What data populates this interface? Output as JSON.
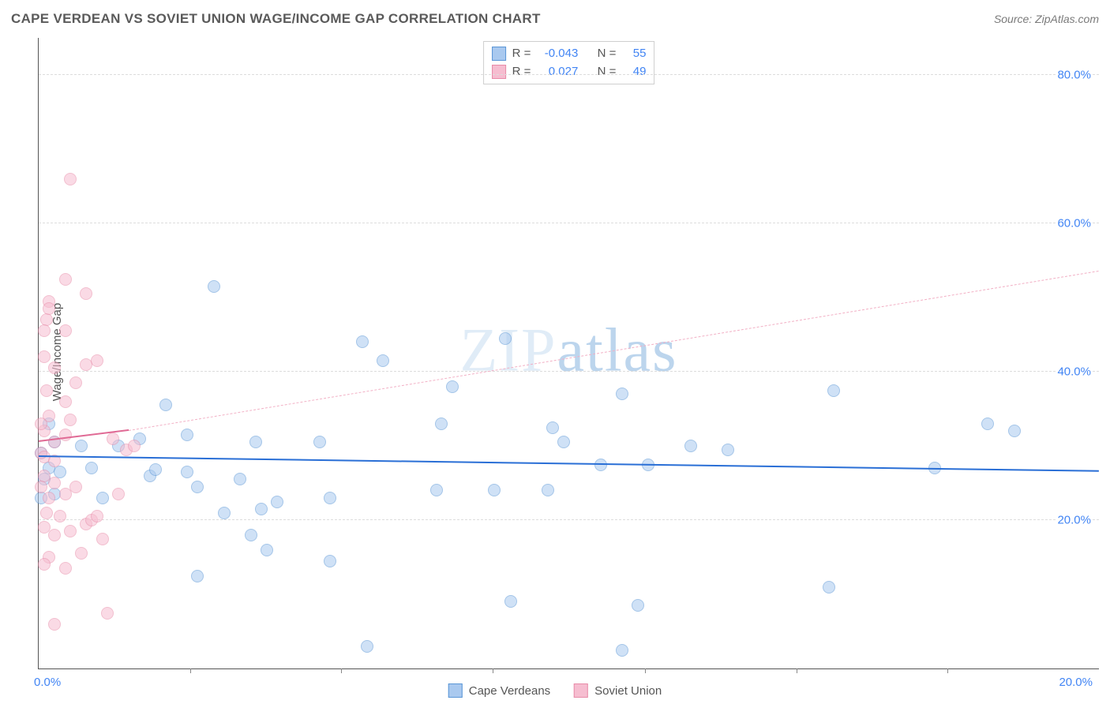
{
  "header": {
    "title": "CAPE VERDEAN VS SOVIET UNION WAGE/INCOME GAP CORRELATION CHART",
    "source_label": "Source: ZipAtlas.com"
  },
  "watermark": {
    "part1": "ZIP",
    "part2": "atlas"
  },
  "chart": {
    "type": "scatter",
    "ylabel": "Wage/Income Gap",
    "background_color": "#ffffff",
    "grid_color": "#dcdcdc",
    "axis_color": "#555555",
    "tick_label_color": "#4285f4",
    "xlim": [
      0,
      20
    ],
    "ylim": [
      0,
      85
    ],
    "xticks_labeled": [
      {
        "v": 0,
        "label": "0.0%"
      },
      {
        "v": 20,
        "label": "20.0%"
      }
    ],
    "xticks_minor": [
      2.86,
      5.71,
      8.57,
      11.43,
      14.29,
      17.14
    ],
    "yticks": [
      {
        "v": 20,
        "label": "20.0%"
      },
      {
        "v": 40,
        "label": "40.0%"
      },
      {
        "v": 60,
        "label": "60.0%"
      },
      {
        "v": 80,
        "label": "80.0%"
      }
    ],
    "series": [
      {
        "id": "cape_verdeans",
        "label": "Cape Verdeans",
        "fill_color": "#a9c9ef",
        "stroke_color": "#5a96d6",
        "fill_opacity": 0.55,
        "marker_radius": 8,
        "trend": {
          "x1": 0,
          "y1": 28.5,
          "x2": 20,
          "y2": 26.5,
          "color": "#2a6fd6",
          "width": 2.5,
          "dash": "solid"
        },
        "points": [
          [
            3.3,
            51.5
          ],
          [
            6.1,
            44.0
          ],
          [
            6.5,
            41.5
          ],
          [
            8.8,
            44.5
          ],
          [
            11.0,
            37.0
          ],
          [
            15.0,
            37.5
          ],
          [
            17.9,
            33.0
          ],
          [
            18.4,
            32.0
          ],
          [
            12.3,
            30.0
          ],
          [
            9.9,
            30.5
          ],
          [
            9.7,
            32.5
          ],
          [
            7.6,
            33.0
          ],
          [
            7.8,
            38.0
          ],
          [
            5.3,
            30.5
          ],
          [
            4.1,
            30.5
          ],
          [
            2.8,
            31.5
          ],
          [
            3.0,
            24.5
          ],
          [
            3.8,
            25.5
          ],
          [
            2.4,
            35.5
          ],
          [
            1.9,
            31.0
          ],
          [
            1.5,
            30.0
          ],
          [
            0.8,
            30.0
          ],
          [
            0.3,
            30.5
          ],
          [
            0.2,
            27.0
          ],
          [
            0.4,
            26.5
          ],
          [
            1.0,
            27.0
          ],
          [
            0.3,
            23.5
          ],
          [
            0.1,
            25.5
          ],
          [
            1.2,
            23.0
          ],
          [
            2.1,
            26.0
          ],
          [
            2.2,
            26.8
          ],
          [
            2.8,
            26.5
          ],
          [
            3.5,
            21.0
          ],
          [
            4.2,
            21.5
          ],
          [
            4.5,
            22.5
          ],
          [
            5.5,
            23.0
          ],
          [
            7.5,
            24.0
          ],
          [
            8.6,
            24.0
          ],
          [
            9.6,
            24.0
          ],
          [
            10.6,
            27.5
          ],
          [
            11.5,
            27.5
          ],
          [
            13.0,
            29.5
          ],
          [
            16.9,
            27.0
          ],
          [
            3.0,
            12.5
          ],
          [
            4.0,
            18.0
          ],
          [
            4.3,
            16.0
          ],
          [
            5.5,
            14.5
          ],
          [
            8.9,
            9.0
          ],
          [
            11.3,
            8.5
          ],
          [
            14.9,
            11.0
          ],
          [
            0.05,
            23.0
          ],
          [
            0.05,
            29.0
          ],
          [
            6.2,
            3.0
          ],
          [
            11.0,
            2.5
          ],
          [
            0.2,
            33.0
          ]
        ]
      },
      {
        "id": "soviet_union",
        "label": "Soviet Union",
        "fill_color": "#f6bdd0",
        "stroke_color": "#e88ba8",
        "fill_opacity": 0.55,
        "marker_radius": 8,
        "trend_solid": {
          "x1": 0,
          "y1": 30.5,
          "x2": 1.7,
          "y2": 32.0,
          "color": "#e06a95",
          "width": 2.5
        },
        "trend_dashed": {
          "x1": 1.7,
          "y1": 32.0,
          "x2": 20,
          "y2": 53.5,
          "color": "#f2b0c5",
          "width": 1.5
        },
        "points": [
          [
            0.6,
            66.0
          ],
          [
            0.2,
            49.5
          ],
          [
            0.5,
            52.5
          ],
          [
            0.9,
            50.5
          ],
          [
            0.15,
            47.0
          ],
          [
            0.2,
            48.5
          ],
          [
            0.1,
            45.5
          ],
          [
            0.5,
            45.5
          ],
          [
            0.1,
            42.0
          ],
          [
            0.9,
            41.0
          ],
          [
            0.3,
            40.5
          ],
          [
            0.7,
            38.5
          ],
          [
            1.1,
            41.5
          ],
          [
            0.15,
            37.5
          ],
          [
            0.5,
            36.0
          ],
          [
            0.2,
            34.0
          ],
          [
            0.1,
            32.0
          ],
          [
            0.3,
            30.5
          ],
          [
            0.5,
            31.5
          ],
          [
            0.05,
            29.0
          ],
          [
            0.1,
            28.5
          ],
          [
            0.3,
            28.0
          ],
          [
            0.1,
            26.0
          ],
          [
            0.3,
            25.0
          ],
          [
            0.05,
            24.5
          ],
          [
            0.2,
            23.0
          ],
          [
            0.5,
            23.5
          ],
          [
            0.7,
            24.5
          ],
          [
            0.9,
            19.5
          ],
          [
            0.15,
            21.0
          ],
          [
            0.4,
            20.5
          ],
          [
            0.6,
            18.5
          ],
          [
            1.0,
            20.0
          ],
          [
            0.3,
            18.0
          ],
          [
            0.1,
            19.0
          ],
          [
            0.8,
            15.5
          ],
          [
            1.3,
            7.5
          ],
          [
            1.65,
            29.5
          ],
          [
            1.5,
            23.5
          ],
          [
            1.1,
            20.5
          ],
          [
            1.4,
            31.0
          ],
          [
            1.8,
            30.0
          ],
          [
            0.05,
            33.0
          ],
          [
            0.6,
            33.5
          ],
          [
            0.3,
            6.0
          ],
          [
            0.2,
            15.0
          ],
          [
            0.1,
            14.0
          ],
          [
            0.5,
            13.5
          ],
          [
            1.2,
            17.5
          ]
        ]
      }
    ],
    "statbox": {
      "border_color": "#cfcfcf",
      "rows": [
        {
          "swatch_fill": "#a9c9ef",
          "swatch_stroke": "#5a96d6",
          "r_label": "R =",
          "r_value": "-0.043",
          "n_label": "N =",
          "n_value": "55"
        },
        {
          "swatch_fill": "#f6bdd0",
          "swatch_stroke": "#e88ba8",
          "r_label": "R =",
          "r_value": "0.027",
          "n_label": "N =",
          "n_value": "49"
        }
      ]
    },
    "legend": [
      {
        "swatch_fill": "#a9c9ef",
        "swatch_stroke": "#5a96d6",
        "label": "Cape Verdeans"
      },
      {
        "swatch_fill": "#f6bdd0",
        "swatch_stroke": "#e88ba8",
        "label": "Soviet Union"
      }
    ]
  }
}
